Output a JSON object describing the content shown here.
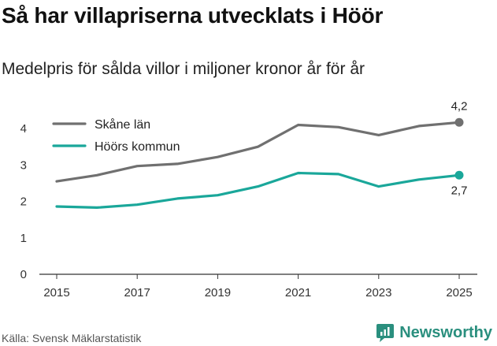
{
  "header": {
    "title": "Så har villapriserna utvecklats i Höör",
    "subtitle": "Medelpris för sålda villor i miljoner kronor år för år"
  },
  "footer": {
    "source": "Källa: Svensk Mäklarstatistik",
    "brand": "Newsworthy"
  },
  "chart_data": {
    "type": "line",
    "title": "Så har villapriserna utvecklats i Höör",
    "subtitle": "Medelpris för sålda villor i miljoner kronor år för år",
    "xlabel": "",
    "ylabel": "",
    "x": [
      2015,
      2016,
      2017,
      2018,
      2019,
      2020,
      2021,
      2022,
      2023,
      2024,
      2025
    ],
    "xticks": [
      "2015",
      "2017",
      "2019",
      "2021",
      "2023",
      "2025"
    ],
    "yticks": [
      "0",
      "1",
      "2",
      "3",
      "4"
    ],
    "ylim": [
      0,
      4.5
    ],
    "xlim": [
      2015,
      2025
    ],
    "grid": false,
    "legend_position": "top-left",
    "series": [
      {
        "name": "Skåne län",
        "color": "#707070",
        "values": [
          2.55,
          2.72,
          2.97,
          3.03,
          3.22,
          3.5,
          4.1,
          4.04,
          3.82,
          4.07,
          4.17
        ],
        "end_label": "4,2"
      },
      {
        "name": "Höörs kommun",
        "color": "#1aa79a",
        "values": [
          1.86,
          1.83,
          1.91,
          2.08,
          2.17,
          2.41,
          2.78,
          2.75,
          2.41,
          2.6,
          2.72
        ],
        "end_label": "2,7"
      }
    ]
  }
}
